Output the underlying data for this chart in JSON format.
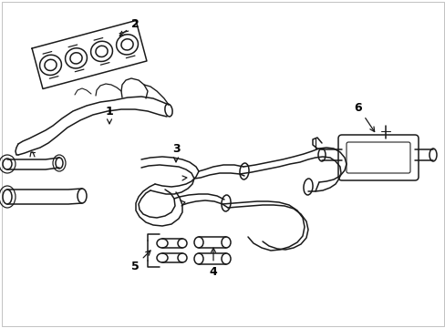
{
  "bg_color": "#ffffff",
  "line_color": "#1a1a1a",
  "line_width": 1.1,
  "figsize": [
    4.89,
    3.6
  ],
  "dpi": 100
}
